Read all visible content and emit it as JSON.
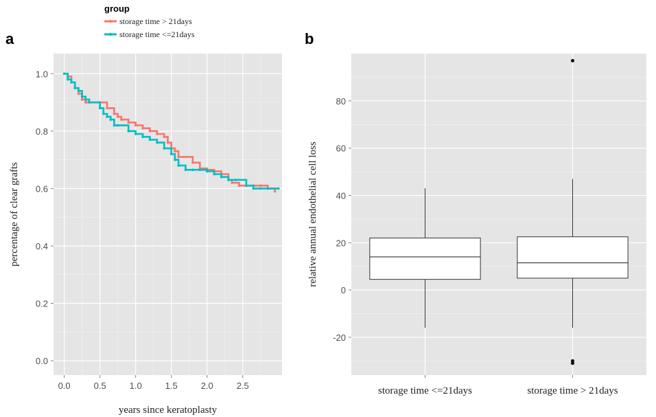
{
  "legend": {
    "title": "group",
    "items": [
      {
        "label": "storage time > 21days",
        "color": "#F8766D"
      },
      {
        "label": "storage time <=21days",
        "color": "#00BFC4"
      }
    ]
  },
  "panel_labels": {
    "a": "a",
    "b": "b"
  },
  "colors": {
    "panel_bg": "#E5E5E5",
    "grid": "#FFFFFF",
    "text": "#4D4D4D"
  },
  "chart_data": [
    {
      "type": "line",
      "step": true,
      "xlabel": "years since keratoplasty",
      "ylabel": "percentage of clear grafts",
      "xlim": [
        -0.15,
        3.05
      ],
      "ylim": [
        -0.05,
        1.07
      ],
      "xticks": [
        0.0,
        0.5,
        1.0,
        1.5,
        2.0,
        2.5
      ],
      "xtick_labels": [
        "0.0",
        "0.5",
        "1.0",
        "1.5",
        "2.0",
        "2.5"
      ],
      "yticks": [
        0.0,
        0.2,
        0.4,
        0.6,
        0.8,
        1.0
      ],
      "ytick_labels": [
        "0.0",
        "0.2",
        "0.4",
        "0.6",
        "0.8",
        "1.0"
      ],
      "grid": true,
      "series": [
        {
          "name": "storage time > 21days",
          "color": "#F8766D",
          "x": [
            0.0,
            0.05,
            0.1,
            0.15,
            0.2,
            0.25,
            0.3,
            0.35,
            0.5,
            0.6,
            0.7,
            0.75,
            0.8,
            0.9,
            1.0,
            1.1,
            1.2,
            1.3,
            1.4,
            1.45,
            1.5,
            1.55,
            1.6,
            1.8,
            1.9,
            2.0,
            2.1,
            2.2,
            2.3,
            2.35,
            2.45,
            2.55,
            2.65,
            2.75,
            2.85,
            2.95
          ],
          "y": [
            1.0,
            0.99,
            0.97,
            0.95,
            0.93,
            0.91,
            0.9,
            0.9,
            0.9,
            0.88,
            0.86,
            0.85,
            0.84,
            0.83,
            0.82,
            0.81,
            0.8,
            0.79,
            0.78,
            0.76,
            0.74,
            0.73,
            0.71,
            0.69,
            0.67,
            0.665,
            0.66,
            0.65,
            0.63,
            0.62,
            0.61,
            0.61,
            0.61,
            0.61,
            0.6,
            0.59
          ]
        },
        {
          "name": "storage time <=21days",
          "color": "#00BFC4",
          "x": [
            0.0,
            0.05,
            0.1,
            0.15,
            0.2,
            0.25,
            0.3,
            0.35,
            0.5,
            0.55,
            0.6,
            0.65,
            0.7,
            0.75,
            0.9,
            1.0,
            1.1,
            1.2,
            1.3,
            1.4,
            1.5,
            1.55,
            1.6,
            1.7,
            1.8,
            1.9,
            2.0,
            2.1,
            2.2,
            2.3,
            2.4,
            2.55,
            2.65,
            2.75,
            2.85,
            3.0
          ],
          "y": [
            1.0,
            0.98,
            0.97,
            0.95,
            0.94,
            0.92,
            0.91,
            0.9,
            0.88,
            0.86,
            0.85,
            0.84,
            0.82,
            0.82,
            0.8,
            0.79,
            0.78,
            0.77,
            0.76,
            0.74,
            0.72,
            0.7,
            0.68,
            0.665,
            0.665,
            0.665,
            0.66,
            0.65,
            0.64,
            0.63,
            0.63,
            0.61,
            0.6,
            0.6,
            0.6,
            0.6
          ]
        }
      ]
    },
    {
      "type": "box",
      "xlabel": "",
      "ylabel": "relative annual endothelial cell loss",
      "ylim": [
        -36,
        100
      ],
      "yticks": [
        -20,
        0,
        20,
        40,
        60,
        80
      ],
      "ytick_labels": [
        "-20",
        "0",
        "20",
        "40",
        "60",
        "80"
      ],
      "categories": [
        "storage time <=21days",
        "storage time > 21days"
      ],
      "grid": true,
      "boxes": [
        {
          "category": "storage time <=21days",
          "whisker_low": -16,
          "q1": 4.5,
          "median": 14,
          "q3": 22,
          "whisker_high": 43,
          "outliers": []
        },
        {
          "category": "storage time > 21days",
          "whisker_low": -16,
          "q1": 5,
          "median": 11.5,
          "q3": 22.5,
          "whisker_high": 47,
          "outliers": [
            97,
            -30,
            -31
          ]
        }
      ]
    }
  ]
}
